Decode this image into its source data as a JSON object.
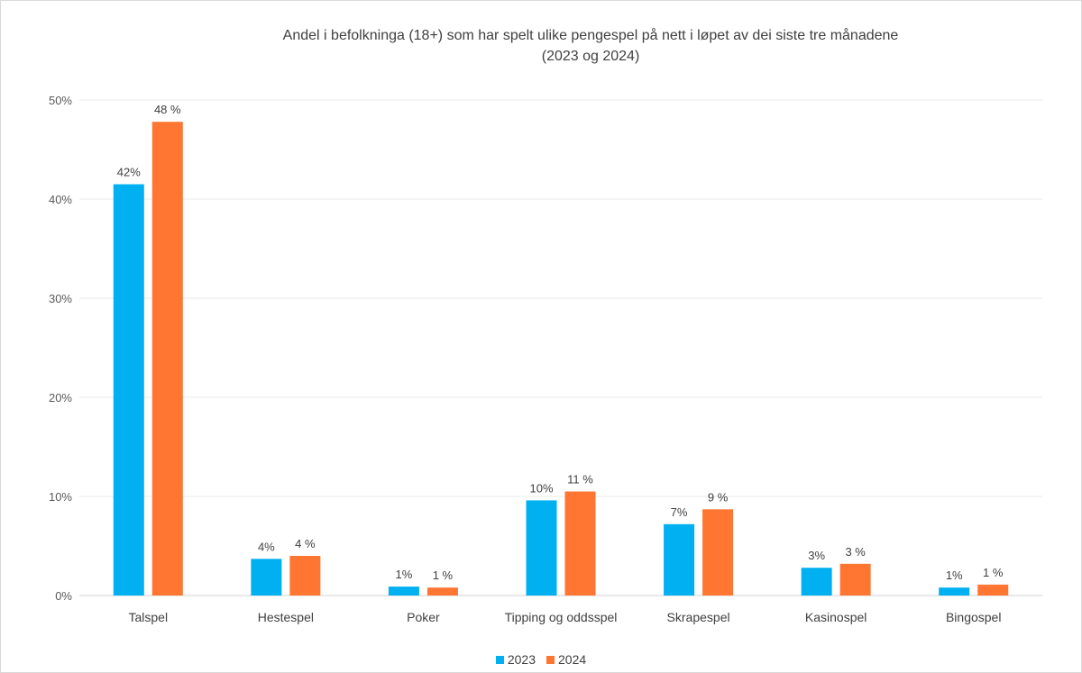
{
  "chart_data": {
    "type": "bar",
    "title": "Andel i befolkninga (18+) som har spelt ulike pengespel på nett i løpet av dei siste tre månadene",
    "subtitle": "(2023 og 2024)",
    "categories": [
      "Talspel",
      "Hestespel",
      "Poker",
      "Tipping og oddsspel",
      "Skrapespel",
      "Kasinospel",
      "Bingospel"
    ],
    "series": [
      {
        "name": "2023",
        "color": "#00b0f0",
        "values": [
          41.5,
          3.7,
          0.9,
          9.6,
          7.2,
          2.8,
          0.8
        ],
        "labels": [
          "42%",
          "4%",
          "1%",
          "10%",
          "7%",
          "3%",
          "1%"
        ]
      },
      {
        "name": "2024",
        "color": "#ff7632",
        "values": [
          47.8,
          4.0,
          0.8,
          10.5,
          8.7,
          3.2,
          1.1
        ],
        "labels": [
          "48 %",
          "4 %",
          "1 %",
          "11 %",
          "9 %",
          "3 %",
          "1 %"
        ]
      }
    ],
    "yticks": [
      "0%",
      "10%",
      "20%",
      "30%",
      "40%",
      "50%"
    ],
    "ylim": [
      0,
      50
    ],
    "grid": true,
    "legend_position": "bottom"
  }
}
